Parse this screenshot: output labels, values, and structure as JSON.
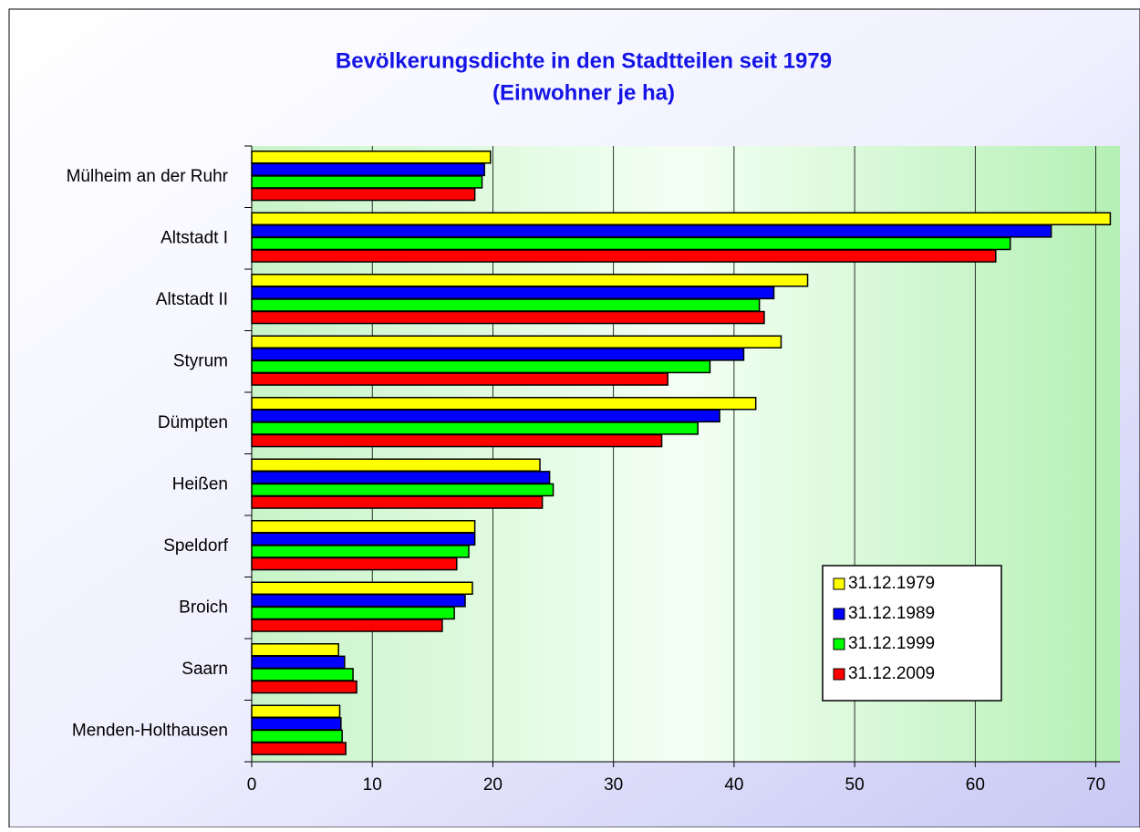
{
  "chart_data": {
    "type": "hbar",
    "title": "Bevölkerungsdichte in den Stadtteilen seit 1979",
    "subtitle": "(Einwohner je ha)",
    "categories": [
      "Mülheim an der Ruhr",
      "Altstadt I",
      "Altstadt II",
      "Styrum",
      "Dümpten",
      "Heißen",
      "Speldorf",
      "Broich",
      "Saarn",
      "Menden-Holthausen"
    ],
    "series": [
      {
        "name": "31.12.1979",
        "color": "#ffff00",
        "values": [
          19.8,
          71.2,
          46.1,
          43.9,
          41.8,
          23.9,
          18.5,
          18.3,
          7.2,
          7.3
        ]
      },
      {
        "name": "31.12.1989",
        "color": "#0000ff",
        "values": [
          19.3,
          66.3,
          43.3,
          40.8,
          38.8,
          24.7,
          18.5,
          17.7,
          7.7,
          7.4
        ]
      },
      {
        "name": "31.12.1999",
        "color": "#00ff00",
        "values": [
          19.1,
          62.9,
          42.1,
          38.0,
          37.0,
          25.0,
          18.0,
          16.8,
          8.4,
          7.5
        ]
      },
      {
        "name": "31.12.2009",
        "color": "#ff0000",
        "values": [
          18.5,
          61.7,
          42.5,
          34.5,
          34.0,
          24.1,
          17.0,
          15.8,
          8.7,
          7.8
        ]
      }
    ],
    "xlim": [
      0,
      72
    ],
    "xticks": [
      0,
      10,
      20,
      30,
      40,
      50,
      60,
      70
    ],
    "grid": true,
    "legend": "lower right"
  }
}
